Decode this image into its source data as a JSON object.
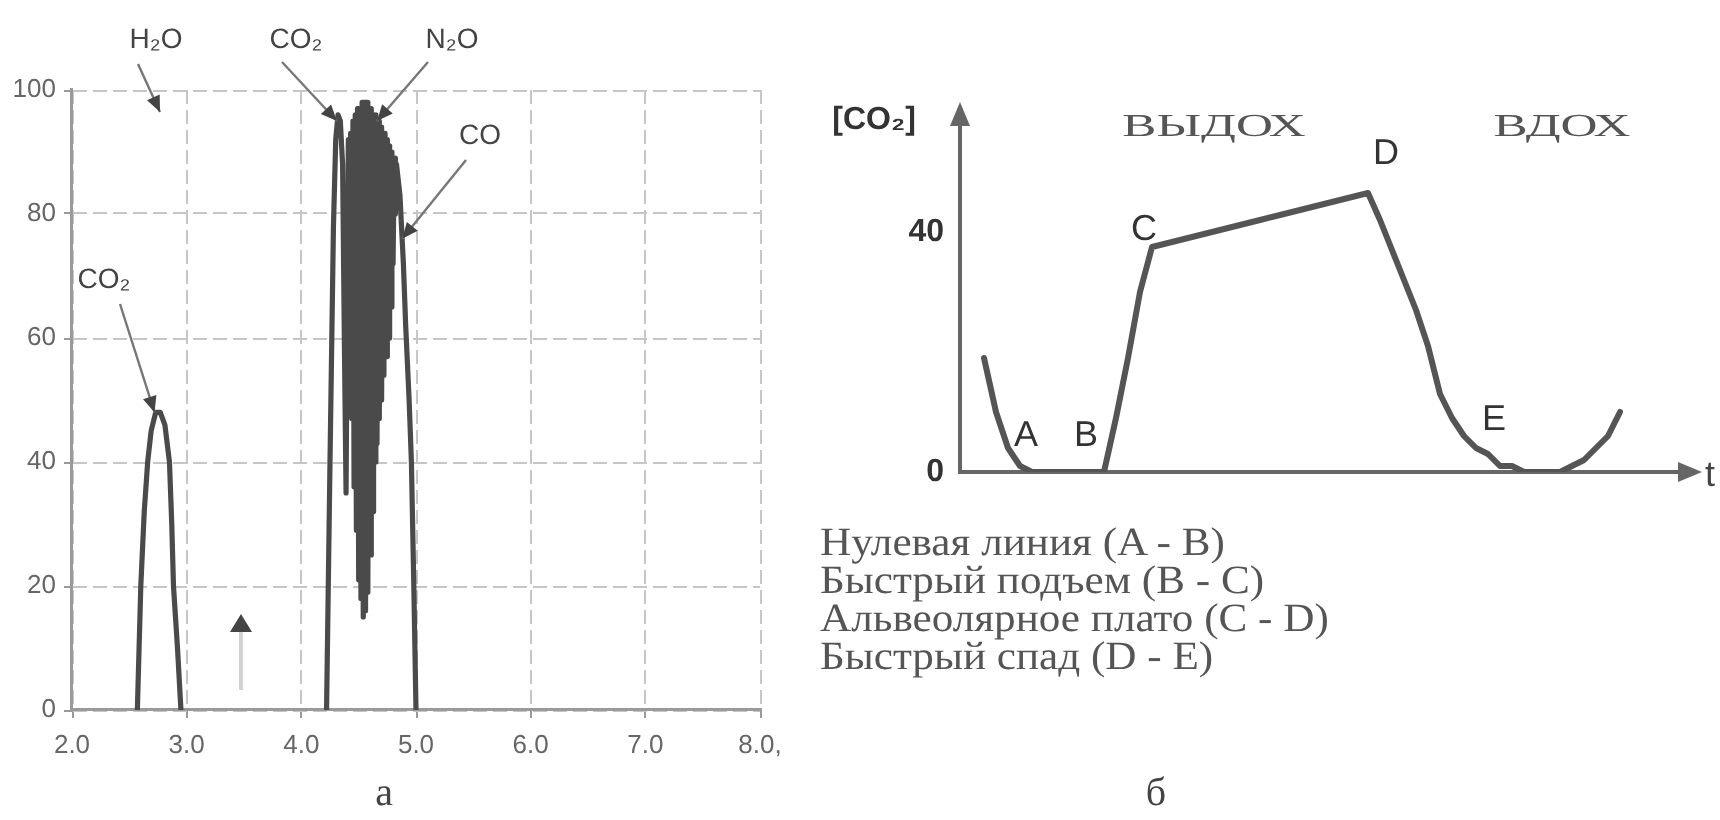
{
  "chart_data": [
    {
      "type": "line",
      "title": "а",
      "x": [
        2.57,
        2.585,
        2.6,
        2.63,
        2.66,
        2.69,
        2.73,
        2.77,
        2.81,
        2.85,
        2.87,
        2.885,
        2.92,
        2.95,
        3.5,
        4.22,
        4.25,
        4.28,
        4.3,
        4.32,
        4.34,
        4.36,
        4.375,
        4.39,
        4.41,
        4.42,
        4.43,
        4.44,
        4.45,
        4.46,
        4.47,
        4.48,
        4.49,
        4.5,
        4.51,
        4.52,
        4.53,
        4.54,
        4.55,
        4.56,
        4.57,
        4.58,
        4.59,
        4.6,
        4.61,
        4.62,
        4.63,
        4.64,
        4.65,
        4.66,
        4.67,
        4.68,
        4.69,
        4.7,
        4.71,
        4.72,
        4.73,
        4.74,
        4.75,
        4.76,
        4.77,
        4.78,
        4.79,
        4.8,
        4.81,
        4.82,
        4.83,
        4.86,
        4.89,
        4.91,
        4.94,
        4.96,
        4.98,
        5.0
      ],
      "series": [
        {
          "color": "#4a4a4a",
          "values": [
            0,
            10,
            20,
            32,
            40,
            45,
            48,
            48,
            46,
            40,
            30,
            20,
            10,
            0,
            null,
            0,
            40,
            78,
            92,
            96,
            95,
            88,
            60,
            35,
            92,
            62,
            93,
            47,
            95,
            36,
            96,
            29,
            97,
            21,
            97,
            18,
            98,
            15,
            98,
            16,
            98,
            19,
            97,
            25,
            97,
            32,
            96,
            40,
            96,
            43,
            95,
            47,
            94,
            50,
            93,
            54,
            93,
            57,
            92,
            60,
            91,
            65,
            90,
            72,
            89,
            80,
            88,
            83,
            72,
            62,
            50,
            40,
            21,
            0
          ]
        }
      ],
      "xlim": [
        2,
        8
      ],
      "xticks": [
        {
          "value": 2,
          "label": "2.0"
        },
        {
          "value": 3,
          "label": "3.0"
        },
        {
          "value": 4,
          "label": "4.0"
        },
        {
          "value": 5,
          "label": "5.0"
        },
        {
          "value": 6,
          "label": "6.0"
        },
        {
          "value": 7,
          "label": "7.0"
        },
        {
          "value": 8,
          "label": "8.0,"
        }
      ],
      "ylim": [
        0,
        100
      ],
      "yticks": [
        0,
        20,
        40,
        60,
        80,
        100
      ],
      "grid": true,
      "annotations": [
        {
          "text": "CO₂",
          "x": 2.72,
          "y": 48
        },
        "H₂O",
        {
          "text": "CO₂",
          "x": 4.31,
          "y": 95
        },
        {
          "text": "N₂O",
          "x": 4.66,
          "y": 95
        },
        {
          "text": "CO",
          "x": 4.88,
          "y": 76
        }
      ]
    },
    {
      "type": "line",
      "title": "б",
      "xlabel": "t",
      "ylabel": "[CO₂]",
      "categories": [
        null,
        null,
        null,
        null,
        null,
        null,
        null,
        null,
        null,
        null,
        null,
        null,
        null,
        null,
        null,
        null,
        null,
        null,
        null,
        null,
        null,
        null,
        null,
        null,
        null,
        null,
        null,
        null,
        null,
        null,
        null,
        null,
        null,
        null,
        null,
        null,
        null,
        null,
        null,
        null,
        null,
        null,
        null,
        null,
        null,
        null,
        null,
        null,
        null,
        null,
        null,
        null,
        null,
        null,
        null,
        null,
        null,
        null,
        null,
        null,
        null
      ],
      "series": [
        {
          "color": "#555555",
          "values": [
            null,
            null,
            19,
            10,
            4,
            1,
            0,
            0,
            0,
            0,
            0,
            0,
            0,
            9,
            19,
            30,
            37.5,
            38,
            38.5,
            39,
            39.5,
            40,
            40.5,
            41,
            41.5,
            42,
            42.5,
            43,
            43.5,
            44,
            44.5,
            45,
            45.5,
            46,
            46.5,
            42,
            37,
            32,
            27,
            21,
            13,
            9,
            6,
            4,
            3,
            1,
            1,
            0,
            0,
            0,
            0,
            1,
            2,
            4,
            6,
            10,
            null,
            null,
            null,
            null,
            null
          ]
        }
      ],
      "ylim": [
        0,
        58
      ],
      "yticks": [
        0,
        40
      ],
      "tick_labels": "y",
      "annotations": [
        "ВЫДОХ",
        "ВДОХ",
        "A",
        "B",
        "C",
        "D",
        "E",
        "Нулевая линия (A - B)",
        "Быстрый подъем (B - C)",
        "Альвеолярное плато (C - D)",
        "Быстрый спад (D - E)"
      ]
    }
  ]
}
